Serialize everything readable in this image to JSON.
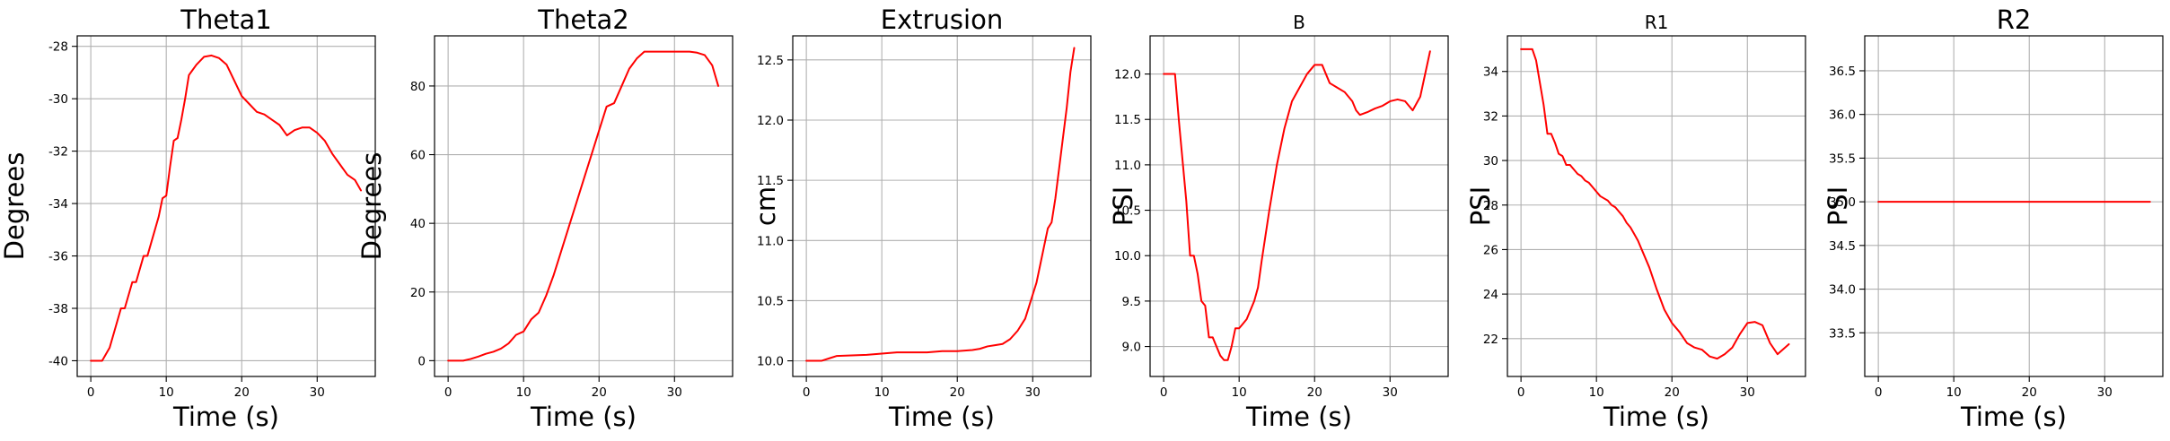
{
  "chart_data": [
    {
      "type": "line",
      "title": "Theta1",
      "title_size": "large",
      "xlabel": "Time (s)",
      "ylabel": "Degrees",
      "xlim": [
        -1.8,
        37.7
      ],
      "ylim": [
        -40.6,
        -27.6
      ],
      "xticks": [
        0,
        10,
        20,
        30
      ],
      "yticks": [
        -40,
        -38,
        -36,
        -34,
        -32,
        -30,
        -28
      ],
      "grid": true,
      "color": "#ff0000",
      "series": [
        {
          "x": [
            0,
            1.5,
            2.5,
            3,
            3.5,
            4,
            4.5,
            5,
            5.5,
            6,
            6.5,
            7,
            7.5,
            8,
            8.5,
            9,
            9.5,
            10,
            10.5,
            11,
            11.5,
            12,
            12.5,
            13,
            13.5,
            14,
            15,
            16,
            17,
            18,
            19,
            20,
            21,
            22,
            23,
            24,
            25,
            26,
            27,
            28,
            29,
            30,
            31,
            32,
            33,
            34,
            35,
            35.8
          ],
          "y": [
            -40,
            -40,
            -39.5,
            -39,
            -38.5,
            -38,
            -38,
            -37.5,
            -37,
            -37,
            -36.5,
            -36,
            -36,
            -35.5,
            -35,
            -34.5,
            -33.8,
            -33.7,
            -32.6,
            -31.6,
            -31.5,
            -30.8,
            -30,
            -29.1,
            -28.9,
            -28.7,
            -28.4,
            -28.35,
            -28.45,
            -28.7,
            -29.3,
            -29.9,
            -30.2,
            -30.5,
            -30.6,
            -30.8,
            -31,
            -31.4,
            -31.2,
            -31.1,
            -31.1,
            -31.3,
            -31.6,
            -32.1,
            -32.5,
            -32.9,
            -33.1,
            -33.5
          ]
        }
      ]
    },
    {
      "type": "line",
      "title": "Theta2",
      "title_size": "large",
      "xlabel": "Time (s)",
      "ylabel": "Degrees",
      "xlim": [
        -1.8,
        37.7
      ],
      "ylim": [
        -4.6,
        94.6
      ],
      "xticks": [
        0,
        10,
        20,
        30
      ],
      "yticks": [
        0,
        20,
        40,
        60,
        80
      ],
      "grid": true,
      "color": "#ff0000",
      "series": [
        {
          "x": [
            0,
            2,
            3,
            4,
            5,
            6,
            7,
            8,
            9,
            10,
            11,
            12,
            13,
            14,
            15,
            16,
            17,
            18,
            19,
            20,
            21,
            22,
            23,
            24,
            25,
            26,
            27,
            28,
            29,
            30,
            31,
            32,
            33,
            34,
            35,
            35.8
          ],
          "y": [
            0,
            0,
            0.5,
            1.2,
            2,
            2.6,
            3.5,
            5,
            7.5,
            8.5,
            12,
            14,
            19,
            25,
            32,
            39,
            46,
            53,
            60,
            67,
            74,
            75,
            80,
            85,
            88,
            90,
            90,
            90,
            90,
            90,
            90,
            90,
            89.7,
            89,
            86,
            80
          ]
        }
      ]
    },
    {
      "type": "line",
      "title": "Extrusion",
      "title_size": "large",
      "xlabel": "Time (s)",
      "ylabel": "cm",
      "xlim": [
        -1.8,
        37.7
      ],
      "ylim": [
        9.87,
        12.7
      ],
      "xticks": [
        0,
        10,
        20,
        30
      ],
      "yticks": [
        10.0,
        10.5,
        11.0,
        11.5,
        12.0,
        12.5
      ],
      "ytick_labels": [
        "10.0",
        "10.5",
        "11.0",
        "11.5",
        "12.0",
        "12.5"
      ],
      "grid": true,
      "color": "#ff0000",
      "series": [
        {
          "x": [
            0,
            2,
            3,
            4,
            8,
            10,
            12,
            14,
            16,
            18,
            20,
            22,
            23,
            24,
            25,
            26,
            27,
            28,
            29,
            30,
            30.5,
            31,
            31.5,
            32,
            32.5,
            33,
            33.5,
            34,
            34.5,
            35,
            35.5
          ],
          "y": [
            10,
            10,
            10.02,
            10.04,
            10.05,
            10.06,
            10.07,
            10.07,
            10.07,
            10.08,
            10.08,
            10.09,
            10.1,
            10.12,
            10.13,
            10.14,
            10.18,
            10.25,
            10.35,
            10.55,
            10.65,
            10.8,
            10.95,
            11.1,
            11.15,
            11.35,
            11.6,
            11.85,
            12.1,
            12.4,
            12.6
          ]
        }
      ]
    },
    {
      "type": "line",
      "title": "B",
      "title_size": "small",
      "xlabel": "Time (s)",
      "ylabel": "PSI",
      "xlim": [
        -1.8,
        37.7
      ],
      "ylim": [
        8.67,
        12.42
      ],
      "xticks": [
        0,
        10,
        20,
        30
      ],
      "yticks": [
        9.0,
        9.5,
        10.0,
        10.5,
        11.0,
        11.5,
        12.0
      ],
      "ytick_labels": [
        "9.0",
        "9.5",
        "10.0",
        "10.5",
        "11.0",
        "11.5",
        "12.0"
      ],
      "grid": true,
      "color": "#ff0000",
      "series": [
        {
          "x": [
            0,
            1.5,
            2,
            3,
            3.5,
            4,
            4.5,
            5,
            5.5,
            6,
            6.5,
            7,
            7.5,
            8,
            8.5,
            9,
            9.5,
            10,
            10.5,
            11,
            11.5,
            12,
            12.5,
            13,
            14,
            15,
            16,
            17,
            18,
            19,
            20,
            21,
            22,
            23,
            24,
            25,
            25.5,
            26,
            27,
            28,
            29,
            30,
            31,
            32,
            33,
            34,
            35.3
          ],
          "y": [
            12,
            12,
            11.5,
            10.6,
            10,
            10,
            9.8,
            9.5,
            9.45,
            9.1,
            9.1,
            9,
            8.9,
            8.85,
            8.85,
            9,
            9.2,
            9.2,
            9.25,
            9.3,
            9.4,
            9.5,
            9.65,
            9.95,
            10.5,
            11.0,
            11.4,
            11.7,
            11.85,
            12.0,
            12.1,
            12.1,
            11.9,
            11.85,
            11.8,
            11.7,
            11.6,
            11.55,
            11.58,
            11.62,
            11.65,
            11.7,
            11.72,
            11.7,
            11.6,
            11.75,
            12.25
          ]
        }
      ]
    },
    {
      "type": "line",
      "title": "R1",
      "title_size": "small",
      "xlabel": "Time (s)",
      "ylabel": "PSI",
      "xlim": [
        -1.8,
        37.7
      ],
      "ylim": [
        20.3,
        35.6
      ],
      "xticks": [
        0,
        10,
        20,
        30
      ],
      "yticks": [
        22,
        24,
        26,
        28,
        30,
        32,
        34
      ],
      "grid": true,
      "color": "#ff0000",
      "series": [
        {
          "x": [
            0,
            1.5,
            2,
            3,
            3.5,
            4,
            4.5,
            5,
            5.5,
            6,
            6.5,
            7,
            7.5,
            8,
            8.5,
            9,
            9.5,
            10,
            10.5,
            11,
            11.5,
            12,
            12.5,
            13,
            13.5,
            14,
            14.5,
            15,
            15.5,
            16,
            17,
            18,
            19,
            20,
            21,
            22,
            23,
            24,
            25,
            26,
            27,
            28,
            29,
            30,
            31,
            32,
            33,
            34,
            35.5
          ],
          "y": [
            35,
            35,
            34.5,
            32.5,
            31.2,
            31.2,
            30.8,
            30.3,
            30.2,
            29.8,
            29.8,
            29.6,
            29.4,
            29.3,
            29.1,
            29,
            28.8,
            28.6,
            28.4,
            28.3,
            28.2,
            28,
            27.9,
            27.7,
            27.5,
            27.2,
            27,
            26.7,
            26.4,
            26,
            25.2,
            24.2,
            23.3,
            22.7,
            22.3,
            21.8,
            21.6,
            21.5,
            21.2,
            21.1,
            21.3,
            21.6,
            22.2,
            22.7,
            22.75,
            22.6,
            21.8,
            21.3,
            21.75
          ]
        }
      ]
    },
    {
      "type": "line",
      "title": "R2",
      "title_size": "large",
      "xlabel": "Time (s)",
      "ylabel": "PSI",
      "xlim": [
        -1.8,
        37.7
      ],
      "ylim": [
        33.0,
        36.9
      ],
      "xticks": [
        0,
        10,
        20,
        30
      ],
      "yticks": [
        33.5,
        34.0,
        34.5,
        35.0,
        35.5,
        36.0,
        36.5
      ],
      "ytick_labels": [
        "33.5",
        "34.0",
        "34.5",
        "35.0",
        "35.5",
        "36.0",
        "36.5"
      ],
      "grid": true,
      "color": "#ff0000",
      "series": [
        {
          "x": [
            0,
            36
          ],
          "y": [
            35,
            35
          ]
        }
      ]
    }
  ]
}
